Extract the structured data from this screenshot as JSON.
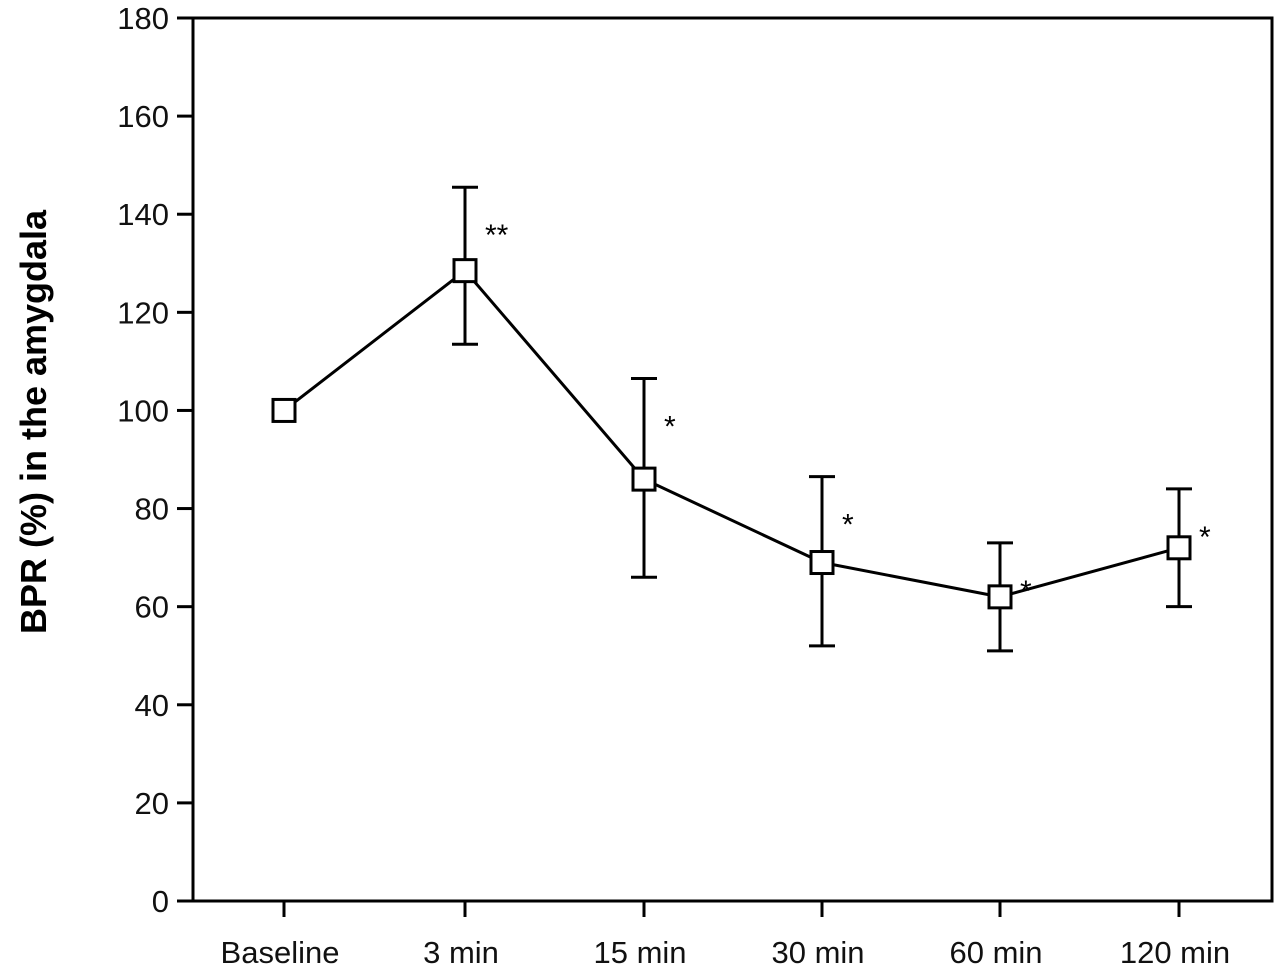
{
  "chart_data": {
    "type": "line",
    "title": "",
    "xlabel": "",
    "ylabel": "BPR (%) in the amygdala",
    "categories": [
      "Baseline",
      "3 min",
      "15 min",
      "30 min",
      "60 min",
      "120 min"
    ],
    "series": [
      {
        "values": [
          100,
          128.5,
          86,
          69,
          62,
          72
        ],
        "error_upper": [
          null,
          145.5,
          106.5,
          86.5,
          73,
          84
        ],
        "error_lower": [
          null,
          113.5,
          66,
          52,
          51,
          60
        ],
        "annotations": [
          "",
          "**",
          "*",
          "*",
          "*",
          "*"
        ],
        "marker": "open-square",
        "color": "#000000"
      }
    ],
    "ylim": [
      0,
      180
    ],
    "yticks": [
      0,
      20,
      40,
      60,
      80,
      100,
      120,
      140,
      160,
      180
    ],
    "grid": false,
    "legend": "none"
  }
}
